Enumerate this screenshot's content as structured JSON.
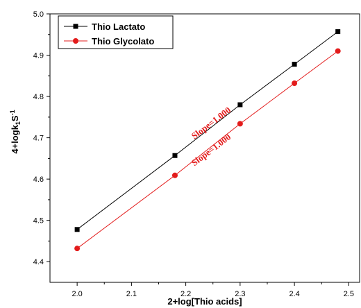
{
  "chart_data": {
    "type": "line",
    "xlabel": "2+log[Thio acids]",
    "ylabel_main": "4+logk",
    "ylabel_sub": "1",
    "ylabel_tail": "S",
    "ylabel_sup": "-1",
    "xlim": [
      1.95,
      2.52
    ],
    "ylim": [
      4.35,
      5.0
    ],
    "xticks": [
      2.0,
      2.1,
      2.2,
      2.3,
      2.4,
      2.5
    ],
    "xtick_labels": [
      "2.0",
      "2.1",
      "2.2",
      "2.3",
      "2.4",
      "2.5"
    ],
    "yticks": [
      4.4,
      4.5,
      4.6,
      4.7,
      4.8,
      4.9,
      5.0
    ],
    "ytick_labels": [
      "4.4",
      "4.5",
      "4.6",
      "4.7",
      "4.8",
      "4.9",
      "5.0"
    ],
    "x": [
      2.0,
      2.18,
      2.3,
      2.4,
      2.48
    ],
    "series": [
      {
        "name": "Thio Lactato",
        "values": [
          4.478,
          4.657,
          4.78,
          4.878,
          4.957
        ],
        "color": "#000000",
        "marker": "square"
      },
      {
        "name": "Thio Glycolato",
        "values": [
          4.432,
          4.609,
          4.734,
          4.832,
          4.91
        ],
        "color": "#e31b1b",
        "marker": "circle"
      }
    ],
    "annotations": [
      {
        "text": "Slope=1.000",
        "x": 2.25,
        "y": 4.73
      },
      {
        "text": "Slope=1.000",
        "x": 2.25,
        "y": 4.665
      }
    ],
    "legend_position": "top-left",
    "grid": false
  }
}
